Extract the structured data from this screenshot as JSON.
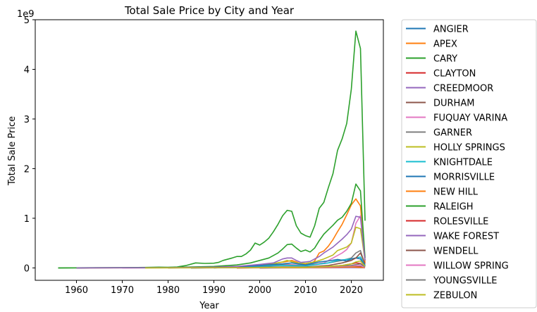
{
  "chart_data": {
    "type": "line",
    "title": "Total Sale Price by City and Year",
    "xlabel": "Year",
    "ylabel": "Total Sale Price",
    "y_multiplier_label": "1e9",
    "xlim": [
      1951,
      2027
    ],
    "ylim": [
      -0.25,
      5.0
    ],
    "x_ticks": [
      1960,
      1970,
      1980,
      1990,
      2000,
      2010,
      2020
    ],
    "y_ticks": [
      0,
      1,
      2,
      3,
      4,
      5
    ],
    "grid": false,
    "legend_position": "outside-right",
    "series": [
      {
        "name": "ANGIER",
        "color": "#1f77b4",
        "points": [
          [
            2000,
            0.0
          ],
          [
            2005,
            0.002
          ],
          [
            2010,
            0.003
          ],
          [
            2015,
            0.008
          ],
          [
            2018,
            0.013
          ],
          [
            2021,
            0.03
          ],
          [
            2022,
            0.02
          ],
          [
            2023,
            0.005
          ]
        ]
      },
      {
        "name": "APEX",
        "color": "#ff7f0e",
        "points": [
          [
            1960,
            0.0
          ],
          [
            1975,
            0.002
          ],
          [
            1985,
            0.005
          ],
          [
            1990,
            0.01
          ],
          [
            1995,
            0.02
          ],
          [
            1999,
            0.04
          ],
          [
            2002,
            0.07
          ],
          [
            2004,
            0.1
          ],
          [
            2006,
            0.13
          ],
          [
            2007,
            0.15
          ],
          [
            2008,
            0.12
          ],
          [
            2009,
            0.08
          ],
          [
            2010,
            0.07
          ],
          [
            2011,
            0.08
          ],
          [
            2012,
            0.14
          ],
          [
            2013,
            0.3
          ],
          [
            2014,
            0.34
          ],
          [
            2015,
            0.44
          ],
          [
            2016,
            0.57
          ],
          [
            2017,
            0.73
          ],
          [
            2018,
            0.88
          ],
          [
            2019,
            1.07
          ],
          [
            2020,
            1.27
          ],
          [
            2021,
            1.39
          ],
          [
            2022,
            1.25
          ],
          [
            2023,
            0.1
          ]
        ]
      },
      {
        "name": "CARY",
        "color": "#2ca02c",
        "points": [
          [
            1956,
            0.0
          ],
          [
            1970,
            0.005
          ],
          [
            1975,
            0.01
          ],
          [
            1978,
            0.015
          ],
          [
            1980,
            0.012
          ],
          [
            1982,
            0.02
          ],
          [
            1984,
            0.05
          ],
          [
            1986,
            0.1
          ],
          [
            1988,
            0.09
          ],
          [
            1990,
            0.095
          ],
          [
            1991,
            0.11
          ],
          [
            1992,
            0.15
          ],
          [
            1994,
            0.2
          ],
          [
            1995,
            0.23
          ],
          [
            1996,
            0.23
          ],
          [
            1997,
            0.28
          ],
          [
            1998,
            0.36
          ],
          [
            1999,
            0.5
          ],
          [
            2000,
            0.46
          ],
          [
            2001,
            0.52
          ],
          [
            2002,
            0.6
          ],
          [
            2003,
            0.73
          ],
          [
            2004,
            0.88
          ],
          [
            2005,
            1.05
          ],
          [
            2006,
            1.16
          ],
          [
            2007,
            1.14
          ],
          [
            2008,
            0.85
          ],
          [
            2009,
            0.7
          ],
          [
            2010,
            0.65
          ],
          [
            2011,
            0.62
          ],
          [
            2012,
            0.85
          ],
          [
            2013,
            1.2
          ],
          [
            2014,
            1.32
          ],
          [
            2015,
            1.62
          ],
          [
            2016,
            1.9
          ],
          [
            2017,
            2.37
          ],
          [
            2018,
            2.6
          ],
          [
            2019,
            2.91
          ],
          [
            2020,
            3.6
          ],
          [
            2021,
            4.77
          ],
          [
            2022,
            4.42
          ],
          [
            2023,
            0.95
          ]
        ]
      },
      {
        "name": "CLAYTON",
        "color": "#d62728",
        "points": [
          [
            2000,
            0.0
          ],
          [
            2010,
            0.002
          ],
          [
            2015,
            0.005
          ],
          [
            2020,
            0.01
          ],
          [
            2023,
            0.003
          ]
        ]
      },
      {
        "name": "CREEDMOOR",
        "color": "#9467bd",
        "points": [
          [
            2000,
            0.0
          ],
          [
            2010,
            0.001
          ],
          [
            2015,
            0.003
          ],
          [
            2020,
            0.006
          ],
          [
            2023,
            0.002
          ]
        ]
      },
      {
        "name": "DURHAM",
        "color": "#8c564b",
        "points": [
          [
            1960,
            0.0
          ],
          [
            1990,
            0.002
          ],
          [
            2000,
            0.005
          ],
          [
            2010,
            0.008
          ],
          [
            2015,
            0.015
          ],
          [
            2020,
            0.025
          ],
          [
            2022,
            0.03
          ],
          [
            2023,
            0.01
          ]
        ]
      },
      {
        "name": "FUQUAY VARINA",
        "color": "#e377c2",
        "points": [
          [
            1970,
            0.0
          ],
          [
            1990,
            0.005
          ],
          [
            2000,
            0.02
          ],
          [
            2006,
            0.07
          ],
          [
            2010,
            0.05
          ],
          [
            2014,
            0.1
          ],
          [
            2016,
            0.2
          ],
          [
            2018,
            0.3
          ],
          [
            2019,
            0.37
          ],
          [
            2020,
            0.5
          ],
          [
            2021,
            0.9
          ],
          [
            2022,
            1.05
          ],
          [
            2023,
            0.15
          ]
        ]
      },
      {
        "name": "GARNER",
        "color": "#7f7f7f",
        "points": [
          [
            1960,
            0.0
          ],
          [
            1980,
            0.005
          ],
          [
            1990,
            0.015
          ],
          [
            2000,
            0.04
          ],
          [
            2005,
            0.06
          ],
          [
            2010,
            0.05
          ],
          [
            2015,
            0.1
          ],
          [
            2018,
            0.15
          ],
          [
            2020,
            0.2
          ],
          [
            2021,
            0.3
          ],
          [
            2022,
            0.35
          ],
          [
            2023,
            0.05
          ]
        ]
      },
      {
        "name": "HOLLY SPRINGS",
        "color": "#bcbd22",
        "points": [
          [
            1985,
            0.0
          ],
          [
            1995,
            0.01
          ],
          [
            2000,
            0.04
          ],
          [
            2005,
            0.12
          ],
          [
            2006,
            0.15
          ],
          [
            2008,
            0.1
          ],
          [
            2010,
            0.09
          ],
          [
            2012,
            0.12
          ],
          [
            2014,
            0.18
          ],
          [
            2016,
            0.26
          ],
          [
            2017,
            0.35
          ],
          [
            2019,
            0.42
          ],
          [
            2020,
            0.5
          ],
          [
            2021,
            0.82
          ],
          [
            2022,
            0.79
          ],
          [
            2023,
            0.15
          ]
        ]
      },
      {
        "name": "KNIGHTDALE",
        "color": "#17becf",
        "points": [
          [
            1985,
            0.0
          ],
          [
            1995,
            0.01
          ],
          [
            2000,
            0.03
          ],
          [
            2005,
            0.05
          ],
          [
            2010,
            0.04
          ],
          [
            2015,
            0.1
          ],
          [
            2017,
            0.15
          ],
          [
            2020,
            0.18
          ],
          [
            2022,
            0.22
          ],
          [
            2023,
            0.05
          ]
        ]
      },
      {
        "name": "MORRISVILLE",
        "color": "#1f77b4",
        "points": [
          [
            1990,
            0.0
          ],
          [
            1995,
            0.02
          ],
          [
            2000,
            0.05
          ],
          [
            2005,
            0.08
          ],
          [
            2007,
            0.1
          ],
          [
            2010,
            0.06
          ],
          [
            2013,
            0.12
          ],
          [
            2015,
            0.14
          ],
          [
            2017,
            0.17
          ],
          [
            2019,
            0.14
          ],
          [
            2020,
            0.18
          ],
          [
            2021,
            0.2
          ],
          [
            2022,
            0.18
          ],
          [
            2023,
            0.04
          ]
        ]
      },
      {
        "name": "NEW HILL",
        "color": "#ff7f0e",
        "points": [
          [
            1995,
            0.0
          ],
          [
            2005,
            0.003
          ],
          [
            2010,
            0.004
          ],
          [
            2015,
            0.01
          ],
          [
            2020,
            0.02
          ],
          [
            2023,
            0.005
          ]
        ]
      },
      {
        "name": "RALEIGH",
        "color": "#2ca02c",
        "points": [
          [
            1956,
            0.0
          ],
          [
            1970,
            0.005
          ],
          [
            1980,
            0.01
          ],
          [
            1985,
            0.02
          ],
          [
            1990,
            0.03
          ],
          [
            1995,
            0.06
          ],
          [
            1998,
            0.1
          ],
          [
            2000,
            0.15
          ],
          [
            2002,
            0.2
          ],
          [
            2004,
            0.3
          ],
          [
            2005,
            0.38
          ],
          [
            2006,
            0.47
          ],
          [
            2007,
            0.48
          ],
          [
            2008,
            0.4
          ],
          [
            2009,
            0.33
          ],
          [
            2010,
            0.36
          ],
          [
            2011,
            0.32
          ],
          [
            2012,
            0.4
          ],
          [
            2013,
            0.55
          ],
          [
            2014,
            0.68
          ],
          [
            2015,
            0.77
          ],
          [
            2016,
            0.86
          ],
          [
            2017,
            0.96
          ],
          [
            2018,
            1.02
          ],
          [
            2019,
            1.14
          ],
          [
            2020,
            1.3
          ],
          [
            2021,
            1.69
          ],
          [
            2022,
            1.55
          ],
          [
            2023,
            0.2
          ]
        ]
      },
      {
        "name": "ROLESVILLE",
        "color": "#d62728",
        "points": [
          [
            1995,
            0.0
          ],
          [
            2005,
            0.01
          ],
          [
            2010,
            0.015
          ],
          [
            2015,
            0.03
          ],
          [
            2018,
            0.05
          ],
          [
            2020,
            0.08
          ],
          [
            2021,
            0.1
          ],
          [
            2022,
            0.09
          ],
          [
            2023,
            0.02
          ]
        ]
      },
      {
        "name": "WAKE FOREST",
        "color": "#9467bd",
        "points": [
          [
            1960,
            0.0
          ],
          [
            1970,
            0.002
          ],
          [
            1980,
            0.005
          ],
          [
            1990,
            0.015
          ],
          [
            1995,
            0.03
          ],
          [
            2000,
            0.07
          ],
          [
            2003,
            0.1
          ],
          [
            2005,
            0.18
          ],
          [
            2006,
            0.2
          ],
          [
            2007,
            0.2
          ],
          [
            2008,
            0.15
          ],
          [
            2009,
            0.11
          ],
          [
            2010,
            0.12
          ],
          [
            2011,
            0.13
          ],
          [
            2012,
            0.18
          ],
          [
            2013,
            0.23
          ],
          [
            2014,
            0.3
          ],
          [
            2015,
            0.36
          ],
          [
            2016,
            0.42
          ],
          [
            2017,
            0.5
          ],
          [
            2018,
            0.58
          ],
          [
            2019,
            0.67
          ],
          [
            2020,
            0.78
          ],
          [
            2021,
            1.04
          ],
          [
            2022,
            1.02
          ],
          [
            2023,
            0.15
          ]
        ]
      },
      {
        "name": "WENDELL",
        "color": "#8c564b",
        "points": [
          [
            1980,
            0.0
          ],
          [
            1995,
            0.005
          ],
          [
            2005,
            0.02
          ],
          [
            2010,
            0.02
          ],
          [
            2015,
            0.05
          ],
          [
            2018,
            0.1
          ],
          [
            2020,
            0.15
          ],
          [
            2021,
            0.2
          ],
          [
            2022,
            0.3
          ],
          [
            2023,
            0.08
          ]
        ]
      },
      {
        "name": "WILLOW SPRING",
        "color": "#e377c2",
        "points": [
          [
            1985,
            0.0
          ],
          [
            1995,
            0.003
          ],
          [
            2005,
            0.005
          ],
          [
            2010,
            0.01
          ],
          [
            2015,
            0.02
          ],
          [
            2020,
            0.04
          ],
          [
            2022,
            0.05
          ],
          [
            2023,
            0.01
          ]
        ]
      },
      {
        "name": "YOUNGSVILLE",
        "color": "#7f7f7f",
        "points": [
          [
            1985,
            0.0
          ],
          [
            1995,
            0.005
          ],
          [
            2005,
            0.01
          ],
          [
            2010,
            0.015
          ],
          [
            2015,
            0.03
          ],
          [
            2020,
            0.05
          ],
          [
            2022,
            0.08
          ],
          [
            2023,
            0.02
          ]
        ]
      },
      {
        "name": "ZEBULON",
        "color": "#bcbd22",
        "points": [
          [
            1975,
            0.0
          ],
          [
            1995,
            0.005
          ],
          [
            2005,
            0.01
          ],
          [
            2010,
            0.01
          ],
          [
            2015,
            0.03
          ],
          [
            2018,
            0.05
          ],
          [
            2020,
            0.08
          ],
          [
            2021,
            0.12
          ],
          [
            2022,
            0.14
          ],
          [
            2023,
            0.03
          ]
        ]
      }
    ]
  }
}
